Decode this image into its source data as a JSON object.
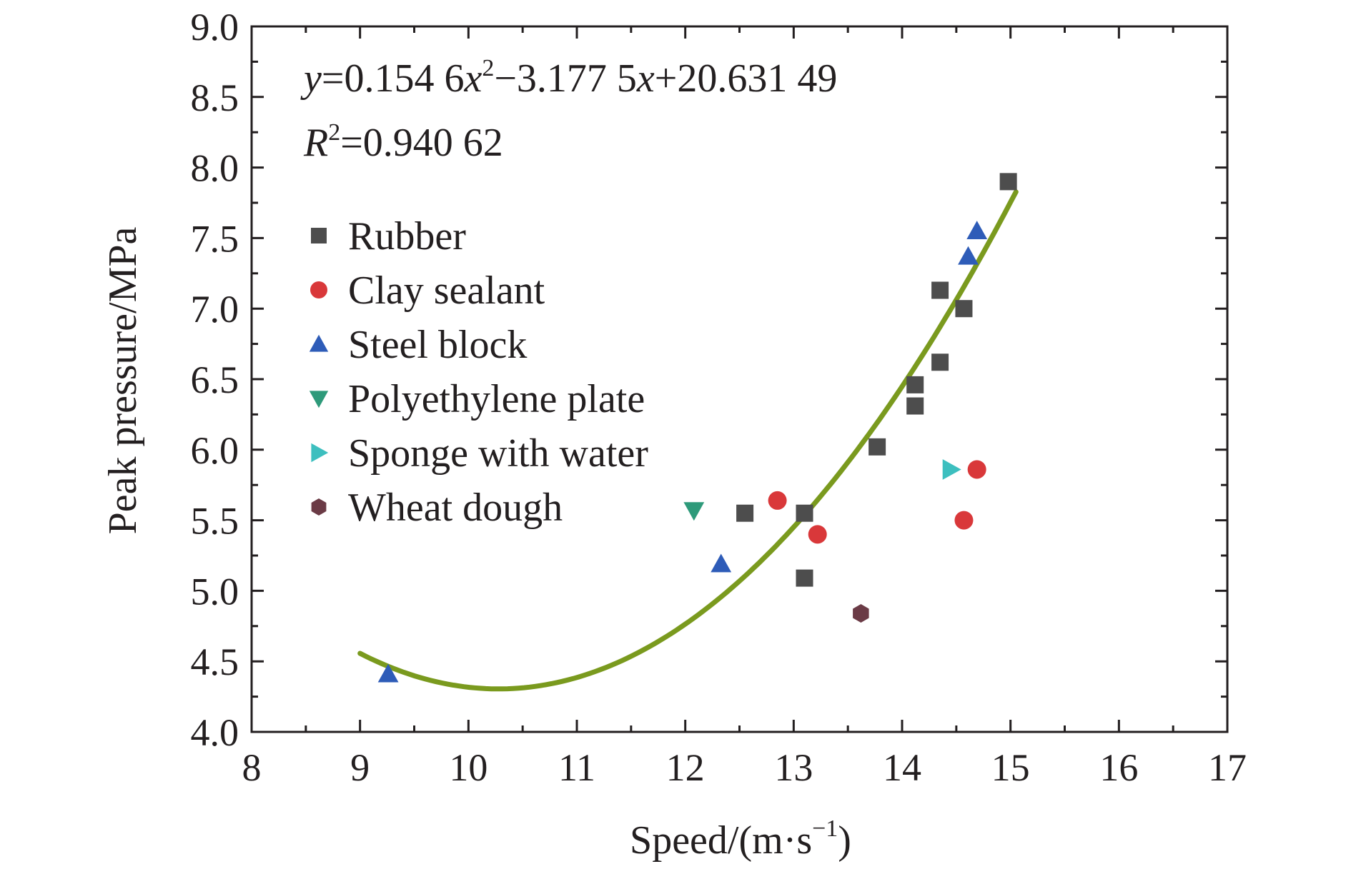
{
  "chart_data": {
    "type": "scatter",
    "xlabel": "Speed/(m·s",
    "xlabel_sup": "−1",
    "xlabel_close": ")",
    "ylabel": "Peak pressure/MPa",
    "xlim": [
      8,
      17
    ],
    "ylim": [
      4.0,
      9.0
    ],
    "x_ticks": [
      "8",
      "9",
      "10",
      "11",
      "12",
      "13",
      "14",
      "15",
      "16",
      "17"
    ],
    "y_ticks": [
      "4.0",
      "4.5",
      "5.0",
      "5.5",
      "6.0",
      "6.5",
      "7.0",
      "7.5",
      "8.0",
      "8.5",
      "9.0"
    ],
    "grid": false,
    "legend_position": "left",
    "equation": {
      "y_var": "y",
      "eq_part1": "=0.154 6",
      "x_var1": "x",
      "sup1": "2",
      "eq_part2": "−3.177 5",
      "x_var2": "x",
      "eq_part3": "+20.631 49",
      "r_var": "R",
      "r_sup": "2",
      "r_value": "=0.940 62"
    },
    "fit": {
      "a": 0.1546,
      "b": -3.1775,
      "c": 20.63149,
      "x_range": [
        9.0,
        15.05
      ],
      "color": "#7a9a1e"
    },
    "series": [
      {
        "name": "Rubber",
        "marker": "square",
        "color": "#4d4d4d",
        "points": [
          [
            14.98,
            7.9
          ],
          [
            14.35,
            7.13
          ],
          [
            14.57,
            7.0
          ],
          [
            14.35,
            6.62
          ],
          [
            14.12,
            6.46
          ],
          [
            14.12,
            6.31
          ],
          [
            13.77,
            6.02
          ],
          [
            12.55,
            5.55
          ],
          [
            13.1,
            5.55
          ],
          [
            13.1,
            5.09
          ]
        ]
      },
      {
        "name": "Clay sealant",
        "marker": "circle",
        "color": "#d9383a",
        "points": [
          [
            12.85,
            5.64
          ],
          [
            13.22,
            5.4
          ],
          [
            14.69,
            5.86
          ],
          [
            14.57,
            5.5
          ]
        ]
      },
      {
        "name": "Steel block",
        "marker": "triangle-up",
        "color": "#2e5cb8",
        "points": [
          [
            14.69,
            7.55
          ],
          [
            14.61,
            7.37
          ],
          [
            12.33,
            5.19
          ],
          [
            9.26,
            4.41
          ]
        ]
      },
      {
        "name": "Polyethylene plate",
        "marker": "triangle-down",
        "color": "#2e9a7a",
        "points": [
          [
            12.08,
            5.57
          ]
        ]
      },
      {
        "name": "Sponge with water",
        "marker": "triangle-right",
        "color": "#3dbfbf",
        "points": [
          [
            14.45,
            5.86
          ]
        ]
      },
      {
        "name": "Wheat dough",
        "marker": "hexagon",
        "color": "#6b3b46",
        "points": [
          [
            13.62,
            4.84
          ]
        ]
      }
    ]
  }
}
